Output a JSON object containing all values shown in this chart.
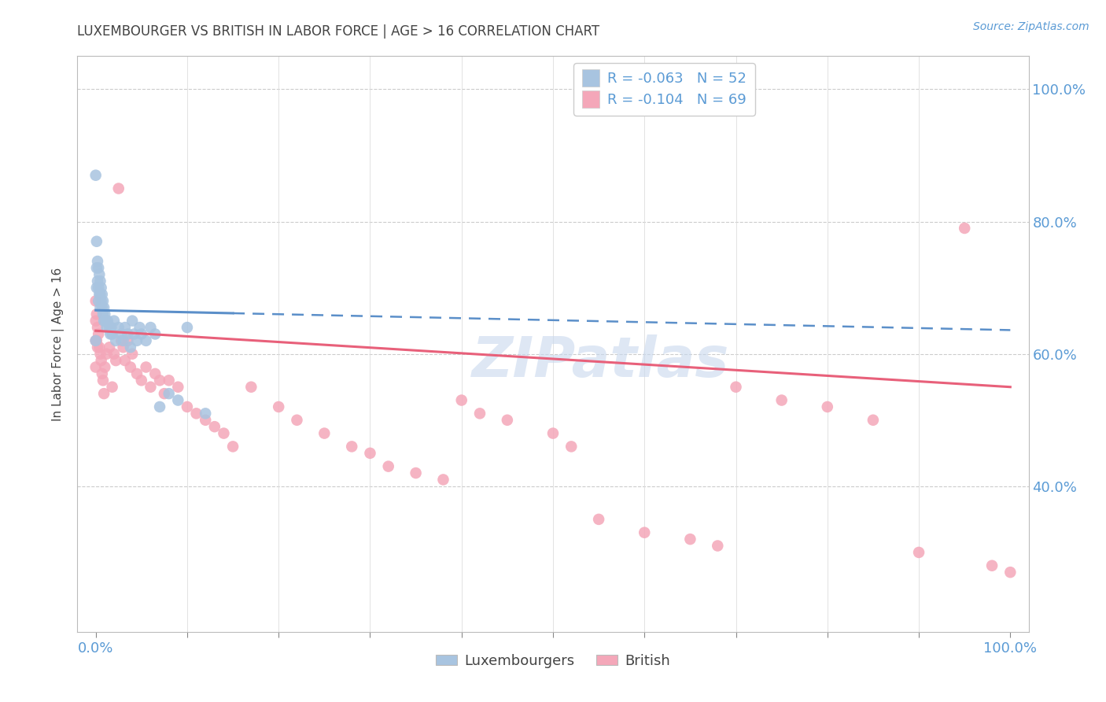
{
  "title": "LUXEMBOURGER VS BRITISH IN LABOR FORCE | AGE > 16 CORRELATION CHART",
  "source": "Source: ZipAtlas.com",
  "ylabel": "In Labor Force | Age > 16",
  "lux_color": "#a8c4e0",
  "brit_color": "#f4a7b9",
  "lux_line_color": "#5b8fc9",
  "brit_line_color": "#e8607a",
  "lux_R": -0.063,
  "lux_N": 52,
  "brit_R": -0.104,
  "brit_N": 69,
  "watermark": "ZIPatlas",
  "background_color": "#ffffff",
  "legend_lux_label": "Luxembourgers",
  "legend_brit_label": "British",
  "text_color": "#5b9bd5",
  "title_color": "#444444",
  "lux_x": [
    0.0,
    0.0,
    0.001,
    0.001,
    0.001,
    0.002,
    0.002,
    0.003,
    0.003,
    0.003,
    0.004,
    0.004,
    0.005,
    0.005,
    0.005,
    0.006,
    0.006,
    0.007,
    0.007,
    0.008,
    0.008,
    0.009,
    0.009,
    0.01,
    0.011,
    0.012,
    0.013,
    0.015,
    0.016,
    0.017,
    0.018,
    0.02,
    0.022,
    0.025,
    0.028,
    0.03,
    0.032,
    0.035,
    0.038,
    0.04,
    0.042,
    0.045,
    0.048,
    0.05,
    0.055,
    0.06,
    0.065,
    0.07,
    0.08,
    0.09,
    0.1,
    0.12
  ],
  "lux_y": [
    0.87,
    0.62,
    0.77,
    0.73,
    0.7,
    0.74,
    0.71,
    0.73,
    0.7,
    0.68,
    0.72,
    0.69,
    0.71,
    0.69,
    0.67,
    0.7,
    0.68,
    0.69,
    0.67,
    0.68,
    0.66,
    0.67,
    0.65,
    0.66,
    0.65,
    0.64,
    0.65,
    0.64,
    0.63,
    0.64,
    0.63,
    0.65,
    0.62,
    0.64,
    0.63,
    0.62,
    0.64,
    0.63,
    0.61,
    0.65,
    0.63,
    0.62,
    0.64,
    0.63,
    0.62,
    0.64,
    0.63,
    0.52,
    0.54,
    0.53,
    0.64,
    0.51
  ],
  "brit_x": [
    0.0,
    0.0,
    0.0,
    0.0,
    0.001,
    0.001,
    0.002,
    0.002,
    0.003,
    0.004,
    0.005,
    0.006,
    0.007,
    0.008,
    0.009,
    0.01,
    0.012,
    0.015,
    0.018,
    0.02,
    0.022,
    0.025,
    0.028,
    0.03,
    0.032,
    0.035,
    0.038,
    0.04,
    0.045,
    0.05,
    0.055,
    0.06,
    0.065,
    0.07,
    0.075,
    0.08,
    0.09,
    0.1,
    0.11,
    0.12,
    0.13,
    0.14,
    0.15,
    0.17,
    0.2,
    0.22,
    0.25,
    0.28,
    0.3,
    0.32,
    0.35,
    0.38,
    0.4,
    0.42,
    0.45,
    0.5,
    0.52,
    0.55,
    0.6,
    0.65,
    0.68,
    0.7,
    0.75,
    0.8,
    0.85,
    0.9,
    0.95,
    0.98,
    1.0
  ],
  "brit_y": [
    0.68,
    0.65,
    0.62,
    0.58,
    0.66,
    0.62,
    0.64,
    0.61,
    0.63,
    0.61,
    0.6,
    0.59,
    0.57,
    0.56,
    0.54,
    0.58,
    0.6,
    0.61,
    0.55,
    0.6,
    0.59,
    0.85,
    0.62,
    0.61,
    0.59,
    0.62,
    0.58,
    0.6,
    0.57,
    0.56,
    0.58,
    0.55,
    0.57,
    0.56,
    0.54,
    0.56,
    0.55,
    0.52,
    0.51,
    0.5,
    0.49,
    0.48,
    0.46,
    0.55,
    0.52,
    0.5,
    0.48,
    0.46,
    0.45,
    0.43,
    0.42,
    0.41,
    0.53,
    0.51,
    0.5,
    0.48,
    0.46,
    0.35,
    0.33,
    0.32,
    0.31,
    0.55,
    0.53,
    0.52,
    0.5,
    0.3,
    0.79,
    0.28,
    0.27
  ],
  "xlim": [
    -0.02,
    1.02
  ],
  "ylim": [
    0.18,
    1.05
  ],
  "lux_line_x_solid_end": 0.15,
  "lux_line_intercept": 0.666,
  "lux_line_slope": -0.03,
  "brit_line_intercept": 0.635,
  "brit_line_slope": -0.085
}
